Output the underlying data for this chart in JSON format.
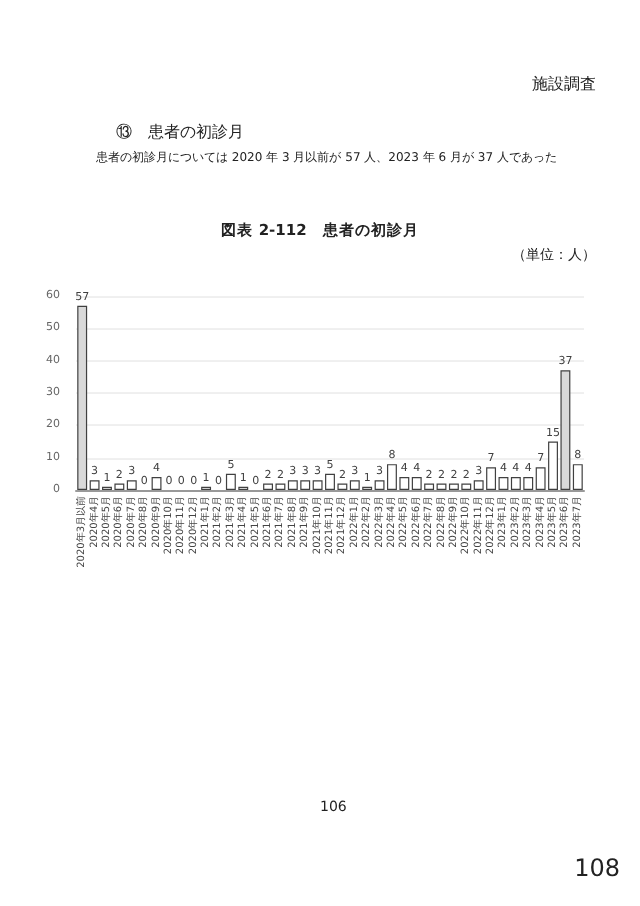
{
  "chart_data": {
    "type": "bar",
    "title": "図表 2-112　患者の初診月",
    "annotations": [
      "施設調査",
      "⑬　患者の初診月",
      "患者の初診月については 2020 年 3 月以前が 57 人、2023 年 6 月が 37 人であった",
      "（単位：人）",
      "106",
      "108"
    ],
    "categories": [
      "2020年3月以前",
      "2020年4月",
      "2020年5月",
      "2020年6月",
      "2020年7月",
      "2020年8月",
      "2020年9月",
      "2020年10月",
      "2020年11月",
      "2020年12月",
      "2021年1月",
      "2021年2月",
      "2021年3月",
      "2021年4月",
      "2021年5月",
      "2021年6月",
      "2021年7月",
      "2021年8月",
      "2021年9月",
      "2021年10月",
      "2021年11月",
      "2021年12月",
      "2022年1月",
      "2022年2月",
      "2022年3月",
      "2022年4月",
      "2022年5月",
      "2022年6月",
      "2022年7月",
      "2022年8月",
      "2022年9月",
      "2022年10月",
      "2022年11月",
      "2022年12月",
      "2023年1月",
      "2023年2月",
      "2023年3月",
      "2023年4月",
      "2023年5月",
      "2023年6月",
      "2023年7月"
    ],
    "values": [
      57,
      3,
      1,
      2,
      3,
      0,
      4,
      0,
      0,
      0,
      1,
      0,
      5,
      1,
      0,
      2,
      2,
      3,
      3,
      3,
      5,
      2,
      3,
      1,
      3,
      8,
      4,
      4,
      2,
      2,
      2,
      2,
      3,
      7,
      4,
      4,
      4,
      7,
      15,
      37,
      8
    ],
    "colors": [
      "#d9d9d9",
      "#ffffff",
      "#ffffff",
      "#ffffff",
      "#ffffff",
      "#ffffff",
      "#ffffff",
      "#ffffff",
      "#ffffff",
      "#ffffff",
      "#ffffff",
      "#ffffff",
      "#ffffff",
      "#ffffff",
      "#ffffff",
      "#ffffff",
      "#ffffff",
      "#ffffff",
      "#ffffff",
      "#ffffff",
      "#ffffff",
      "#ffffff",
      "#ffffff",
      "#ffffff",
      "#ffffff",
      "#ffffff",
      "#ffffff",
      "#ffffff",
      "#ffffff",
      "#ffffff",
      "#ffffff",
      "#ffffff",
      "#ffffff",
      "#ffffff",
      "#ffffff",
      "#ffffff",
      "#ffffff",
      "#ffffff",
      "#ffffff",
      "#d9d9d9",
      "#ffffff"
    ],
    "ylim": [
      0,
      60
    ],
    "yticks": [
      0,
      10,
      20,
      30,
      40,
      50,
      60
    ],
    "grid": "y",
    "data_labels": true
  }
}
